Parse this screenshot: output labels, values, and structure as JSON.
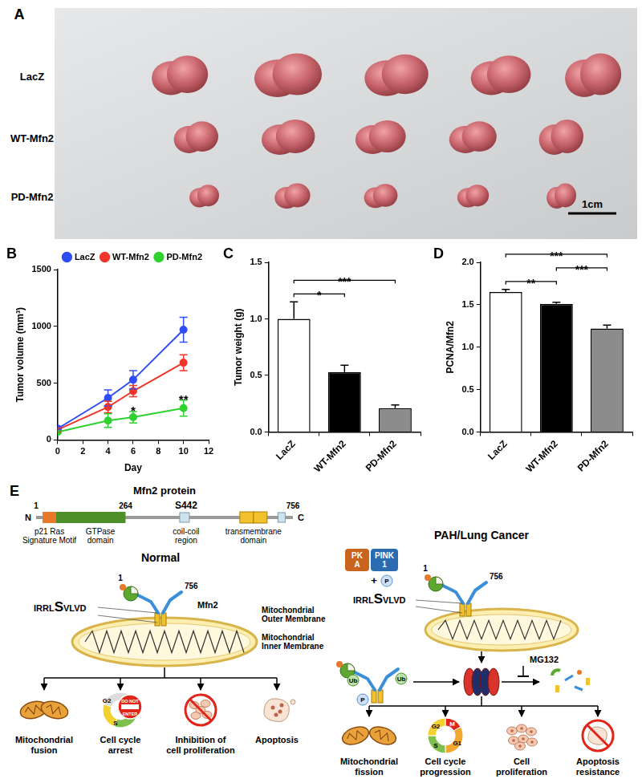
{
  "panel_labels": [
    "A",
    "B",
    "C",
    "D",
    "E"
  ],
  "photo": {
    "rows": [
      "LacZ",
      "WT-Mfn2",
      "PD-Mfn2"
    ],
    "scale_bar": "1cm"
  },
  "chart_data": [
    {
      "type": "line",
      "x_label": "Day",
      "y_label": "Tumor volume (mm³)",
      "x": [
        0,
        4,
        6,
        10
      ],
      "series": [
        {
          "name": "LacZ",
          "color": "#2f4df5",
          "values": [
            100,
            370,
            530,
            970
          ],
          "errors": [
            20,
            70,
            80,
            110
          ]
        },
        {
          "name": "WT-Mfn2",
          "color": "#f0352a",
          "values": [
            90,
            290,
            430,
            680
          ],
          "errors": [
            15,
            50,
            50,
            70
          ]
        },
        {
          "name": "PD-Mfn2",
          "color": "#2fd12f",
          "values": [
            70,
            170,
            200,
            280
          ],
          "errors": [
            10,
            60,
            50,
            70
          ],
          "annotations": [
            {
              "x": 6,
              "label": "*"
            },
            {
              "x": 10,
              "label": "**"
            }
          ]
        }
      ],
      "xlim": [
        0,
        12
      ],
      "xticks": [
        0,
        2,
        4,
        6,
        8,
        10,
        12
      ],
      "ylim": [
        0,
        1500
      ],
      "yticks": [
        0,
        500,
        1000,
        1500
      ],
      "grid": false,
      "legend": "upper right",
      "marker": "circle"
    },
    {
      "type": "bar",
      "y_label": "Tumor weight (g)",
      "categories": [
        "LacZ",
        "WT-Mfn2",
        "PD-Mfn2"
      ],
      "values": [
        1.0,
        0.53,
        0.21
      ],
      "errors": [
        0.15,
        0.06,
        0.03
      ],
      "colors": [
        "#ffffff",
        "#000000",
        "#8c8c8c"
      ],
      "ylim": [
        0,
        1.5
      ],
      "yticks": [
        {
          "value": 0,
          "label": "0.0"
        },
        0.5,
        {
          "value": 1,
          "label": "1.0"
        },
        1.5
      ],
      "grid": false,
      "comparisons": [
        {
          "from": "LacZ",
          "to": "WT-Mfn2",
          "label": "*"
        },
        {
          "from": "LacZ",
          "to": "PD-Mfn2",
          "label": "***"
        }
      ]
    },
    {
      "type": "bar",
      "y_label": "PCNA/Mfn2",
      "categories": [
        "LacZ",
        "WT-Mfn2",
        "PD-Mfn2"
      ],
      "values": [
        1.65,
        1.51,
        1.22
      ],
      "errors": [
        0.03,
        0.02,
        0.04
      ],
      "colors": [
        "#ffffff",
        "#000000",
        "#8c8c8c"
      ],
      "ylim": [
        0,
        2
      ],
      "yticks": [
        {
          "value": 0,
          "label": "0.0"
        },
        0.5,
        {
          "value": 1,
          "label": "1.0"
        },
        1.5,
        {
          "value": 2,
          "label": "2.0"
        }
      ],
      "grid": false,
      "comparisons": [
        {
          "from": "LacZ",
          "to": "WT-Mfn2",
          "label": "**"
        },
        {
          "from": "LacZ",
          "to": "PD-Mfn2",
          "label": "***"
        },
        {
          "from": "WT-Mfn2",
          "to": "PD-Mfn2",
          "label": "***"
        }
      ]
    }
  ],
  "diagram": {
    "protein": {
      "title": "Mfn2 protein",
      "n_term": "N",
      "c_term": "C",
      "positions": [
        1,
        264,
        756
      ],
      "site": "S442",
      "domains": [
        [
          "p21 Ras",
          "Signature Motif"
        ],
        [
          "GTPase",
          "domain"
        ],
        [
          "coil-coil",
          "region"
        ],
        [
          "transmembrane",
          "domain"
        ]
      ]
    },
    "normal": {
      "title": "Normal",
      "sequence": [
        "IRRL",
        "S",
        "VLVD"
      ],
      "molecule": "Mfn2",
      "termini": [
        1,
        756
      ],
      "membranes": [
        [
          "Mitochondrial",
          "Outer Membrane"
        ],
        [
          "Mitochondrial",
          "Inner Membrane"
        ]
      ],
      "cell_cycle": [
        "G2",
        "S"
      ],
      "sign": [
        "DO NOT",
        "ENTER"
      ],
      "outcomes": [
        [
          "Mitochondrial",
          "fusion"
        ],
        [
          "Cell cycle",
          "arrest"
        ],
        [
          "Inhibition of",
          "cell proliferation"
        ],
        [
          "Apoptosis"
        ]
      ]
    },
    "disease": {
      "title": "PAH/Lung Cancer",
      "kinases": [
        [
          "PK",
          "A"
        ],
        [
          "PINK",
          "1"
        ]
      ],
      "phosphate": [
        "+",
        "P"
      ],
      "sequence": [
        "IRRL",
        "S",
        "VLVD"
      ],
      "termini": [
        1,
        756
      ],
      "ubiquitin": "Ub",
      "p": "P",
      "inhibitor": "MG132",
      "cell_cycle": [
        "M",
        "G1",
        "G2",
        "S"
      ],
      "outcomes": [
        [
          "Mitochondrial",
          "fission"
        ],
        [
          "Cell cycle",
          "progression"
        ],
        [
          "Cell",
          "proliferation"
        ],
        [
          "Apoptosis",
          "resistance"
        ]
      ]
    }
  }
}
